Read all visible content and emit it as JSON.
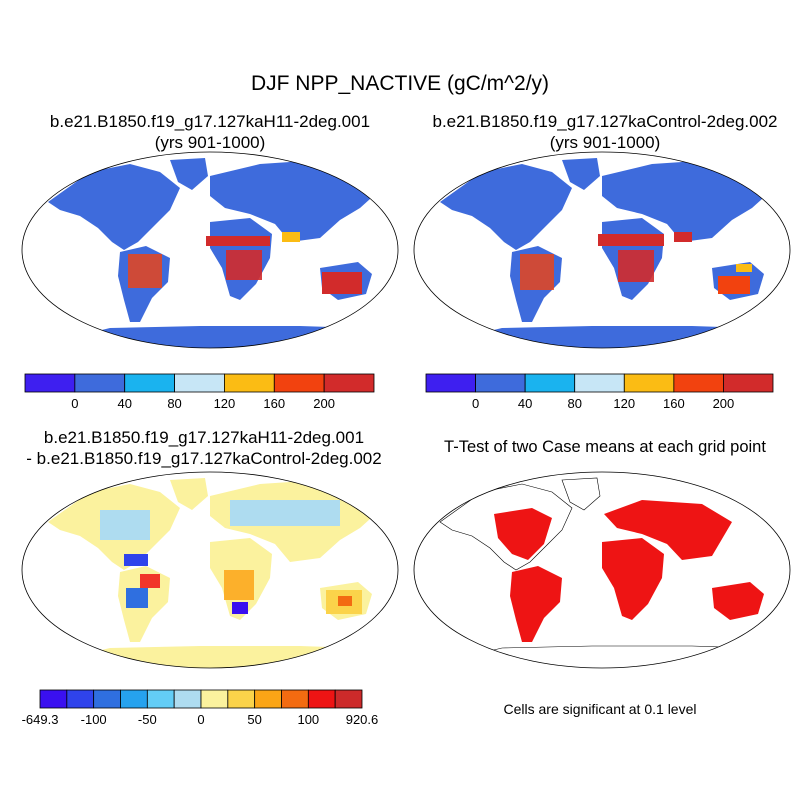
{
  "figure": {
    "title": "DJF NPP_NACTIVE (gC/m^2/y)",
    "panels": [
      {
        "id": "case1",
        "title_line1": "b.e21.B1850.f19_g17.127kaH11-2deg.001",
        "title_line2": "(yrs 901-1000)"
      },
      {
        "id": "case2",
        "title_line1": "b.e21.B1850.f19_g17.127kaControl-2deg.002",
        "title_line2": "(yrs 901-1000)"
      },
      {
        "id": "diff",
        "title_line1": "b.e21.B1850.f19_g17.127kaH11-2deg.001",
        "title_line2": "- b.e21.B1850.f19_g17.127kaControl-2deg.002"
      },
      {
        "id": "ttest",
        "title_line1": "T-Test of two Case means at each grid point",
        "title_line2": ""
      }
    ],
    "significance_note": "Cells are significant at 0.1 level"
  },
  "colorbars": {
    "mean": {
      "colors": [
        "#3e1ff0",
        "#3e6bdc",
        "#1ab3ef",
        "#c7e6f6",
        "#fbbc14",
        "#f2420f",
        "#d22b2b"
      ],
      "labels": [
        "0",
        "40",
        "80",
        "120",
        "160",
        "200"
      ]
    },
    "diff": {
      "colors": [
        "#3a10f0",
        "#2f43ec",
        "#2f6fe0",
        "#26a2ee",
        "#63cdf6",
        "#aedcf0",
        "#fbf29e",
        "#fbd34a",
        "#fba516",
        "#f36b11",
        "#ee1414",
        "#cc2a2a"
      ],
      "labels": [
        "-649.3",
        "-100",
        "-50",
        "0",
        "50",
        "100",
        "920.6"
      ],
      "label_at_boundary": [
        0,
        2,
        4,
        6,
        8,
        10,
        12
      ]
    }
  },
  "maps": {
    "ocean_color": "#ffffff",
    "case1_land_color": "#3e6bdc",
    "case2_land_color": "#3e6bdc",
    "diff_land_color": "#fbf29e",
    "ttest_fill_color": "#ee1414"
  }
}
